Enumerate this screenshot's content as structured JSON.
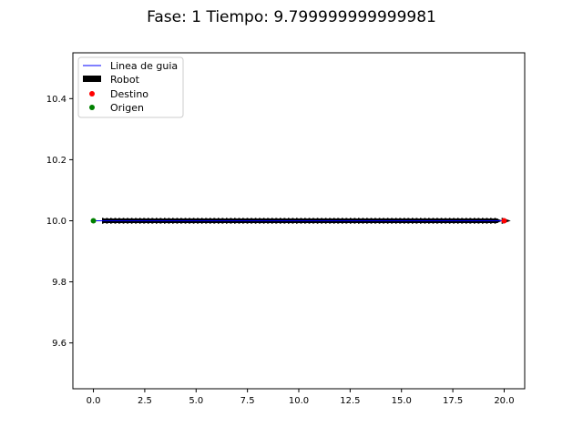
{
  "chart_data": {
    "type": "line",
    "title": "Fase: 1 Tiempo: 9.799999999999981",
    "xlabel": "",
    "ylabel": "",
    "xlim": [
      -1.0,
      21.0
    ],
    "ylim": [
      9.45,
      10.55
    ],
    "x_ticks": [
      0.0,
      2.5,
      5.0,
      7.5,
      10.0,
      12.5,
      15.0,
      17.5,
      20.0
    ],
    "x_tick_labels": [
      "0.0",
      "2.5",
      "5.0",
      "7.5",
      "10.0",
      "12.5",
      "15.0",
      "17.5",
      "20.0"
    ],
    "y_ticks": [
      9.6,
      9.8,
      10.0,
      10.2,
      10.4
    ],
    "y_tick_labels": [
      "9.6",
      "9.8",
      "10.0",
      "10.2",
      "10.4"
    ],
    "grid": false,
    "legend_position": "top-left",
    "guide_line": {
      "name": "Linea de guia",
      "x": [
        0.0,
        20.0
      ],
      "y": [
        10.0,
        10.0
      ],
      "color": "#0000ff"
    },
    "robot": {
      "name": "Robot",
      "x_start": 0.6,
      "x_end": 19.7,
      "y": 10.0,
      "color": "#000000",
      "arrow_count": 96
    },
    "destination": {
      "name": "Destino",
      "x": 20.0,
      "y": 10.0,
      "color": "#ff0000"
    },
    "origin": {
      "name": "Origen",
      "x": 0.0,
      "y": 10.0,
      "color": "#008000"
    }
  }
}
